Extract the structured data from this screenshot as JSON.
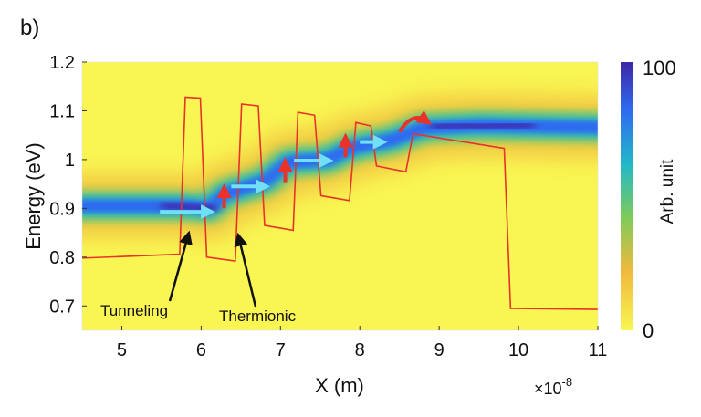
{
  "panel_label": "b)",
  "chart_data": {
    "type": "heatmap",
    "xlabel": "X (m)",
    "x_multiplier": "×10",
    "x_multiplier_exponent": "-8",
    "ylabel": "Energy (eV)",
    "xlim": [
      4.5,
      11
    ],
    "ylim": [
      0.65,
      1.2
    ],
    "x_ticks": [
      "5",
      "6",
      "7",
      "8",
      "9",
      "10",
      "11"
    ],
    "x_tick_values": [
      5,
      6,
      7,
      8,
      9,
      10,
      11
    ],
    "y_ticks": [
      "0.7",
      "0.8",
      "0.9",
      "1",
      "1.1",
      "1.2"
    ],
    "y_tick_values": [
      0.7,
      0.8,
      0.9,
      1.0,
      1.1,
      1.2
    ],
    "grid": false,
    "colorbar": {
      "label": "Arb. unit",
      "min_label": "0",
      "max_label": "100",
      "colormap": "parula",
      "colors": [
        "#3e26a8",
        "#2f6bf0",
        "#21b8c8",
        "#7fcb5a",
        "#f0b93c",
        "#f9f552"
      ]
    },
    "heatmap_ridge": {
      "x": [
        4.5,
        5.8,
        6.1,
        6.3,
        6.8,
        7.1,
        7.6,
        7.9,
        8.4,
        8.8,
        9.5,
        11
      ],
      "y": [
        0.905,
        0.905,
        0.9,
        0.93,
        0.955,
        0.995,
        1.0,
        1.025,
        1.04,
        1.065,
        1.07,
        1.065
      ]
    },
    "band_profile": {
      "color": "#e8322a",
      "x": [
        4.5,
        5.73,
        5.8,
        5.99,
        6.07,
        6.43,
        6.51,
        6.72,
        6.8,
        7.16,
        7.22,
        7.43,
        7.51,
        7.87,
        7.95,
        8.14,
        8.21,
        8.58,
        8.67,
        9.82,
        9.9,
        11.0
      ],
      "y": [
        0.798,
        0.806,
        1.128,
        1.126,
        0.8,
        0.792,
        1.114,
        1.11,
        0.865,
        0.855,
        1.097,
        1.091,
        0.926,
        0.916,
        1.076,
        1.069,
        0.987,
        0.975,
        1.053,
        1.023,
        0.695,
        0.693
      ]
    },
    "transport_arrows": [
      {
        "kind": "horizontal",
        "x0": 5.48,
        "x1": 6.18,
        "y": 0.893
      },
      {
        "kind": "horizontal",
        "x0": 6.38,
        "x1": 6.87,
        "y": 0.945
      },
      {
        "kind": "horizontal",
        "x0": 7.17,
        "x1": 7.67,
        "y": 0.998
      },
      {
        "kind": "horizontal",
        "x0": 8.0,
        "x1": 8.35,
        "y": 1.036
      },
      {
        "kind": "up",
        "x": 6.29,
        "y0": 0.9,
        "y1": 0.951
      },
      {
        "kind": "up",
        "x": 7.06,
        "y0": 0.952,
        "y1": 1.005
      },
      {
        "kind": "up",
        "x": 7.82,
        "y0": 1.005,
        "y1": 1.055
      },
      {
        "kind": "curved",
        "x0": 8.5,
        "y0": 1.057,
        "x1": 8.9,
        "y1": 1.08
      }
    ],
    "annotations": [
      {
        "text": "Tunneling",
        "target_x": 5.83,
        "target_y": 0.856
      },
      {
        "text": "Thermionic",
        "target_x": 6.48,
        "target_y": 0.852
      }
    ]
  }
}
